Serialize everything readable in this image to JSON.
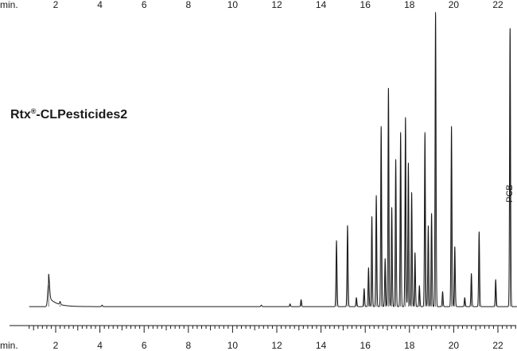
{
  "chart_data": {
    "type": "line",
    "title": "Rtx®-CLPesticides2",
    "title_parts": {
      "main": "Rtx",
      "sup": "®",
      "rest": "-CLPesticides2"
    },
    "xlabel": "min.",
    "ylabel": "",
    "xlim": [
      0.8,
      23.0
    ],
    "ylim": [
      0,
      100
    ],
    "grid": false,
    "legend": "none",
    "line_color": "#1a1a1a",
    "x_ticks": [
      2,
      4,
      6,
      8,
      10,
      12,
      14,
      16,
      18,
      20,
      22
    ],
    "x_tick_labels": [
      "2",
      "4",
      "6",
      "8",
      "10",
      "12",
      "14",
      "16",
      "18",
      "20",
      "22"
    ],
    "annotation": {
      "text": "PCB",
      "x": 22.9,
      "y": 38
    },
    "baseline": 0.5,
    "series": [
      {
        "peaks": [
          {
            "x": 1.68,
            "y": 7.6
          },
          {
            "x": 2.2,
            "y": 1.0
          },
          {
            "x": 4.1,
            "y": 0.5
          },
          {
            "x": 11.3,
            "y": 0.5
          },
          {
            "x": 12.6,
            "y": 0.9
          },
          {
            "x": 13.1,
            "y": 2.3
          },
          {
            "x": 14.7,
            "y": 22
          },
          {
            "x": 15.2,
            "y": 27
          },
          {
            "x": 15.6,
            "y": 3
          },
          {
            "x": 15.95,
            "y": 6
          },
          {
            "x": 16.15,
            "y": 13
          },
          {
            "x": 16.3,
            "y": 30
          },
          {
            "x": 16.5,
            "y": 37
          },
          {
            "x": 16.72,
            "y": 60
          },
          {
            "x": 16.9,
            "y": 16
          },
          {
            "x": 17.05,
            "y": 73
          },
          {
            "x": 17.2,
            "y": 33
          },
          {
            "x": 17.38,
            "y": 49
          },
          {
            "x": 17.6,
            "y": 58
          },
          {
            "x": 17.82,
            "y": 63
          },
          {
            "x": 17.95,
            "y": 48
          },
          {
            "x": 18.1,
            "y": 38
          },
          {
            "x": 18.25,
            "y": 18
          },
          {
            "x": 18.45,
            "y": 7
          },
          {
            "x": 18.7,
            "y": 58
          },
          {
            "x": 18.85,
            "y": 27
          },
          {
            "x": 19.0,
            "y": 31
          },
          {
            "x": 19.18,
            "y": 98
          },
          {
            "x": 19.5,
            "y": 5
          },
          {
            "x": 19.9,
            "y": 60
          },
          {
            "x": 20.05,
            "y": 20
          },
          {
            "x": 20.5,
            "y": 3
          },
          {
            "x": 20.8,
            "y": 11
          },
          {
            "x": 21.15,
            "y": 25
          },
          {
            "x": 21.9,
            "y": 9
          },
          {
            "x": 22.55,
            "y": 93
          }
        ]
      }
    ]
  }
}
